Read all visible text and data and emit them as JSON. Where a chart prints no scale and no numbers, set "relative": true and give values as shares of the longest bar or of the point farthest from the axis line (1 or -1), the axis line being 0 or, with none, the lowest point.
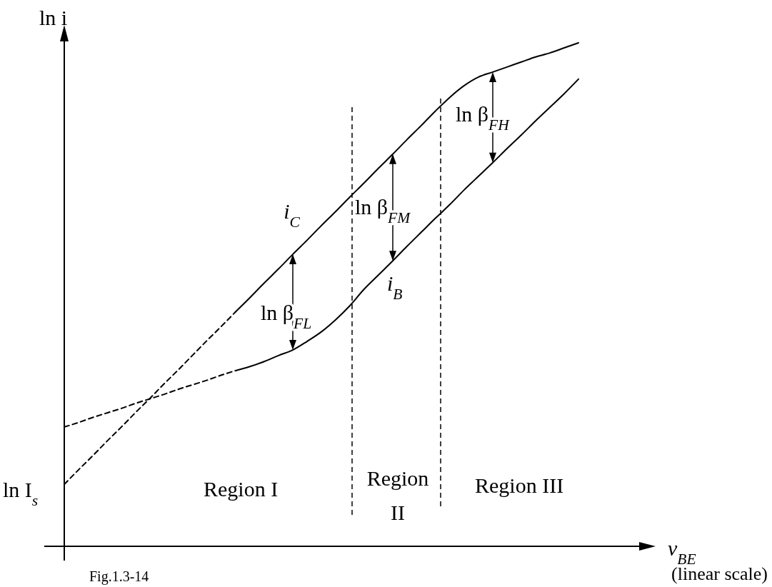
{
  "chart_data": {
    "type": "line",
    "relative": true,
    "ylabel": "ln i",
    "xlabel": "v$_{BE}$ (linear scale)",
    "categories": [
      null,
      null,
      null,
      null,
      null,
      null,
      null,
      null,
      null,
      null,
      null,
      null,
      null,
      null,
      null,
      null,
      null,
      null,
      null,
      null,
      null,
      null,
      null,
      null,
      null,
      null,
      null,
      null,
      null,
      null,
      null,
      null,
      null,
      null,
      null,
      null,
      null
    ],
    "series": [
      {
        "name": "i$_{C}$",
        "color": "#000000",
        "line_style": "solid",
        "values": [
          null,
          null,
          null,
          null,
          null,
          null,
          null,
          null,
          null,
          null,
          null,
          null,
          0.466,
          0.494,
          0.523,
          0.551,
          0.58,
          0.608,
          0.637,
          0.665,
          0.694,
          0.722,
          0.751,
          0.779,
          0.808,
          0.836,
          0.865,
          0.892,
          0.915,
          0.932,
          0.942,
          0.952,
          0.962,
          0.972,
          0.98,
          0.99,
          1
        ]
      },
      {
        "color": "#000000",
        "line_style": "dashed",
        "values": [
          0.123,
          0.152,
          0.18,
          0.209,
          0.237,
          0.266,
          0.294,
          0.323,
          0.351,
          0.38,
          0.409,
          0.437,
          0.466,
          null,
          null,
          null,
          null,
          null,
          null,
          null,
          null,
          null,
          null,
          null,
          null,
          null,
          null,
          null,
          null,
          null,
          null,
          null,
          null,
          null,
          null,
          null,
          null
        ]
      },
      {
        "name": "i$_{B}$",
        "color": "#000000",
        "line_style": "solid",
        "values": [
          null,
          null,
          null,
          null,
          null,
          null,
          null,
          null,
          null,
          null,
          null,
          null,
          0.349,
          0.357,
          0.367,
          0.379,
          0.39,
          0.407,
          0.426,
          0.45,
          0.478,
          0.511,
          0.539,
          0.567,
          0.596,
          0.624,
          0.652,
          0.679,
          0.708,
          0.735,
          0.762,
          0.79,
          0.817,
          0.845,
          0.872,
          0.899,
          0.928
        ]
      },
      {
        "color": "#000000",
        "line_style": "dashed",
        "values": [
          0.237,
          0.246,
          0.256,
          0.265,
          0.274,
          0.284,
          0.293,
          0.302,
          0.312,
          0.321,
          0.33,
          0.34,
          0.349,
          null,
          null,
          null,
          null,
          null,
          null,
          null,
          null,
          null,
          null,
          null,
          null,
          null,
          null,
          null,
          null,
          null,
          null,
          null,
          null,
          null,
          null,
          null,
          null
        ]
      }
    ],
    "annotations": [
      "ln β$_{FL}$",
      "ln β$_{FM}$",
      "ln β$_{FH}$",
      "ln I$_{s}$",
      "Region I",
      "Region II",
      "Region III",
      "Fig.1.3-14"
    ]
  }
}
